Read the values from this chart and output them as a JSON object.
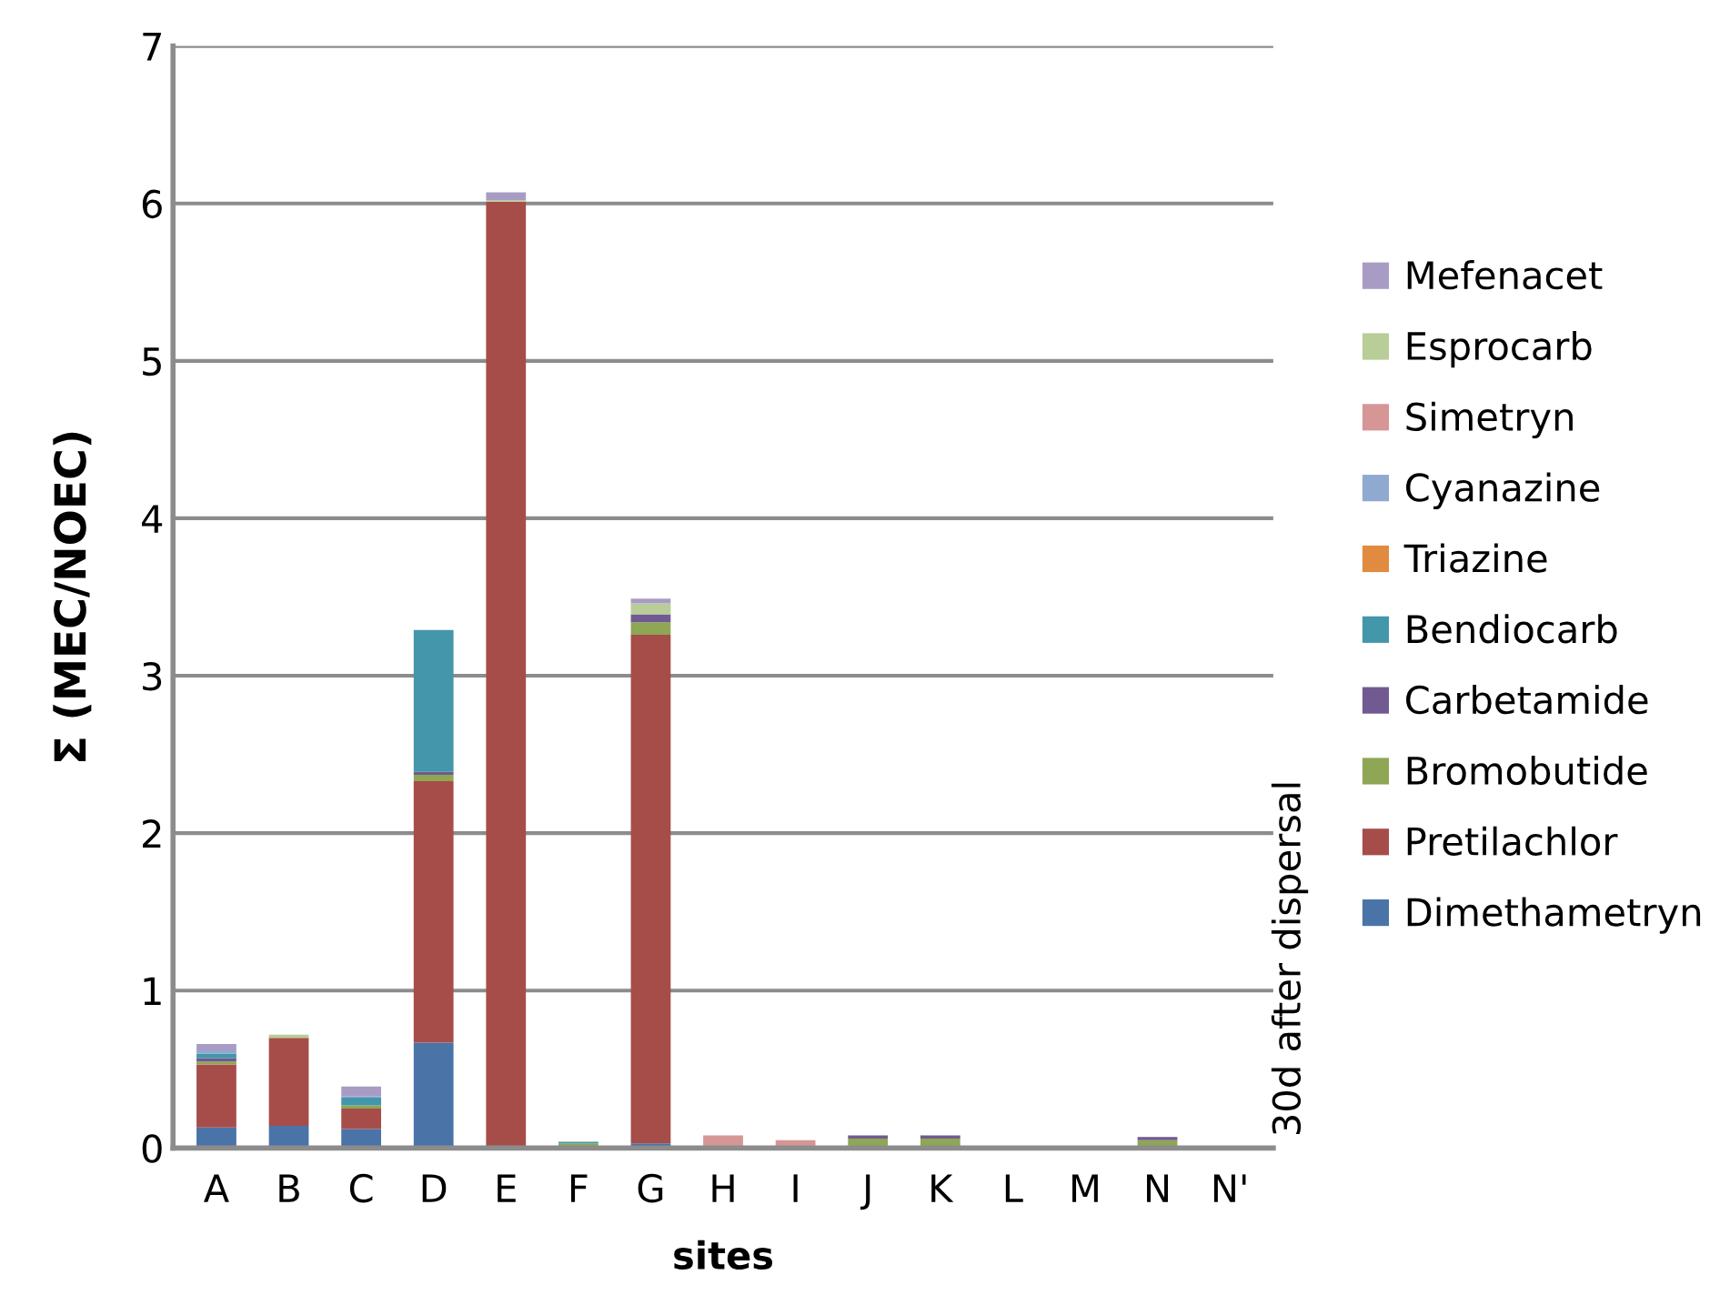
{
  "chart_data": {
    "type": "bar",
    "stacked": true,
    "xlabel": "sites",
    "ylabel": "Σ (MEC/NOEC)",
    "categories": [
      "A",
      "B",
      "C",
      "D",
      "E",
      "F",
      "G",
      "H",
      "I",
      "J",
      "K",
      "L",
      "M",
      "N",
      "N'"
    ],
    "ylim": [
      0,
      7
    ],
    "yticks": [
      0,
      1,
      2,
      3,
      4,
      5,
      6,
      7
    ],
    "grid": "y",
    "legend": "right",
    "annotations": [
      "30d after dispersal"
    ],
    "series": [
      {
        "name": "Dimethametryn",
        "color": "#4a73a8",
        "values": [
          0.13,
          0.14,
          0.12,
          0.67,
          0.01,
          0.01,
          0.03,
          0,
          0,
          0.01,
          0,
          0,
          0,
          0,
          0
        ]
      },
      {
        "name": "Pretilachlor",
        "color": "#a64d4a",
        "values": [
          0.4,
          0.56,
          0.13,
          1.66,
          6.0,
          0,
          3.23,
          0,
          0,
          0,
          0,
          0,
          0,
          0,
          0
        ]
      },
      {
        "name": "Bromobutide",
        "color": "#8fa655",
        "values": [
          0.02,
          0,
          0.02,
          0.04,
          0,
          0.02,
          0.08,
          0,
          0,
          0.05,
          0.06,
          0,
          0,
          0.05,
          0
        ]
      },
      {
        "name": "Carbetamide",
        "color": "#715a91",
        "values": [
          0.02,
          0,
          0,
          0.02,
          0,
          0,
          0.05,
          0,
          0,
          0.02,
          0.02,
          0,
          0,
          0.02,
          0
        ]
      },
      {
        "name": "Bendiocarb",
        "color": "#4496aa",
        "values": [
          0.03,
          0,
          0.05,
          0.9,
          0,
          0.01,
          0,
          0,
          0,
          0,
          0,
          0,
          0,
          0,
          0
        ]
      },
      {
        "name": "Triazine",
        "color": "#e08b3f",
        "values": [
          0,
          0,
          0,
          0,
          0,
          0,
          0,
          0,
          0,
          0,
          0,
          0,
          0,
          0,
          0
        ]
      },
      {
        "name": "Cyanazine",
        "color": "#8fa9d0",
        "values": [
          0.02,
          0,
          0.01,
          0,
          0,
          0,
          0,
          0,
          0,
          0,
          0,
          0,
          0,
          0,
          0
        ]
      },
      {
        "name": "Simetryn",
        "color": "#d69695",
        "values": [
          0,
          0,
          0,
          0,
          0,
          0,
          0,
          0.08,
          0.05,
          0,
          0,
          0,
          0,
          0,
          0
        ]
      },
      {
        "name": "Esprocarb",
        "color": "#b8cd97",
        "values": [
          0,
          0.02,
          0,
          0,
          0.01,
          0,
          0.07,
          0,
          0,
          0,
          0,
          0,
          0,
          0,
          0
        ]
      },
      {
        "name": "Mefenacet",
        "color": "#a89cc4",
        "values": [
          0.04,
          0,
          0.06,
          0,
          0.05,
          0,
          0.03,
          0,
          0,
          0,
          0,
          0,
          0,
          0,
          0
        ]
      }
    ]
  }
}
